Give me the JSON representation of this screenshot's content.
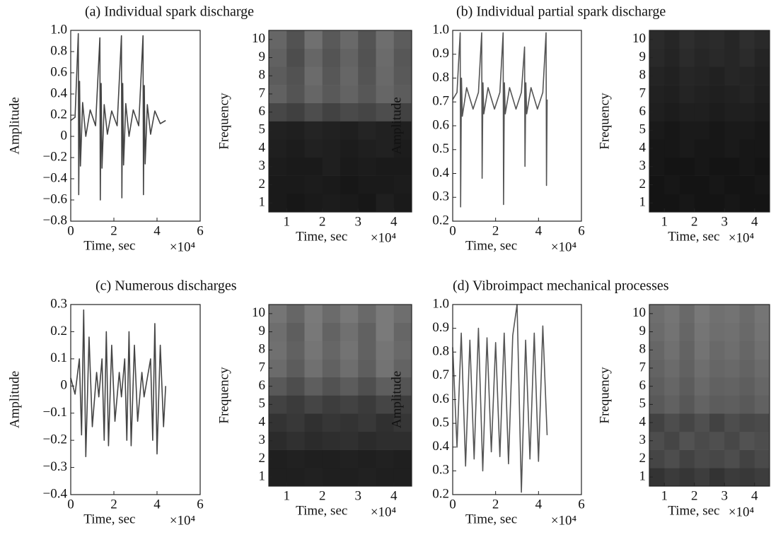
{
  "chart_data": [
    {
      "type": "line",
      "title": "(a) Individual spark discharge",
      "ylabel": "Amplitude",
      "xlabel": "Time, sec",
      "x_multiplier": "×10⁴",
      "color": "#444444",
      "xlim": [
        0,
        6
      ],
      "xticks": [
        0,
        2,
        4,
        6
      ],
      "ylim": [
        -0.8,
        1.0
      ],
      "yticks": [
        {
          "value": -0.8,
          "label": "−0.8"
        },
        {
          "value": -0.6,
          "label": "−0.6"
        },
        {
          "value": -0.4,
          "label": "−0.4"
        },
        {
          "value": -0.2,
          "label": "−0.2"
        },
        0,
        0.2,
        0.4,
        0.6,
        0.8,
        {
          "value": 1.0,
          "label": "1.0"
        }
      ],
      "x": [
        0,
        0.2,
        0.35,
        0.37,
        0.41,
        0.45,
        0.55,
        0.7,
        0.9,
        1.15,
        1.35,
        1.37,
        1.41,
        1.45,
        1.55,
        1.7,
        1.9,
        2.15,
        2.35,
        2.37,
        2.41,
        2.45,
        2.55,
        2.7,
        2.9,
        3.15,
        3.35,
        3.37,
        3.41,
        3.45,
        3.55,
        3.7,
        3.9,
        4.15,
        4.4
      ],
      "values": [
        0.15,
        0.18,
        0.97,
        -0.55,
        0.52,
        -0.28,
        0.32,
        0.0,
        0.25,
        0.1,
        0.93,
        -0.6,
        0.5,
        -0.3,
        0.3,
        0.02,
        0.24,
        0.1,
        0.95,
        -0.58,
        0.5,
        -0.27,
        0.31,
        0.0,
        0.25,
        0.1,
        0.95,
        -0.55,
        0.48,
        -0.26,
        0.3,
        0.02,
        0.24,
        0.12,
        0.15
      ]
    },
    {
      "type": "heatmap",
      "ylabel": "Frequency",
      "xlabel": "Time, sec",
      "x_multiplier": "×10⁴",
      "xlim": [
        0.5,
        4.5
      ],
      "xticks": [
        1,
        2,
        3,
        4
      ],
      "ylim": [
        0.5,
        10.5
      ],
      "yticks": [
        1,
        2,
        3,
        4,
        5,
        6,
        7,
        8,
        9,
        10
      ],
      "columns": [
        0.75,
        1.25,
        1.75,
        2.25,
        2.75,
        3.25,
        3.75,
        4.25
      ],
      "rows": [
        1,
        2,
        3,
        4,
        5,
        6,
        7,
        8,
        9,
        10
      ],
      "values": [
        [
          0.1,
          0.09,
          0.1,
          0.11,
          0.1,
          0.09,
          0.12,
          0.1
        ],
        [
          0.1,
          0.1,
          0.11,
          0.1,
          0.09,
          0.1,
          0.1,
          0.11
        ],
        [
          0.11,
          0.1,
          0.1,
          0.12,
          0.1,
          0.11,
          0.1,
          0.1
        ],
        [
          0.12,
          0.11,
          0.13,
          0.12,
          0.11,
          0.12,
          0.13,
          0.11
        ],
        [
          0.13,
          0.12,
          0.14,
          0.13,
          0.12,
          0.14,
          0.13,
          0.12
        ],
        [
          0.28,
          0.25,
          0.3,
          0.26,
          0.29,
          0.27,
          0.3,
          0.26
        ],
        [
          0.38,
          0.33,
          0.4,
          0.35,
          0.39,
          0.34,
          0.4,
          0.36
        ],
        [
          0.36,
          0.32,
          0.42,
          0.34,
          0.4,
          0.33,
          0.41,
          0.35
        ],
        [
          0.38,
          0.3,
          0.4,
          0.33,
          0.39,
          0.32,
          0.42,
          0.34
        ],
        [
          0.4,
          0.32,
          0.44,
          0.35,
          0.41,
          0.33,
          0.43,
          0.36
        ]
      ]
    },
    {
      "type": "line",
      "title": "(b) Individual partial spark discharge",
      "ylabel": "Amplitude",
      "xlabel": "Time, sec",
      "x_multiplier": "×10⁴",
      "color": "#555555",
      "xlim": [
        0,
        6
      ],
      "xticks": [
        0,
        2,
        4,
        6
      ],
      "ylim": [
        0.2,
        1.0
      ],
      "yticks": [
        0.2,
        0.3,
        0.4,
        0.5,
        0.6,
        0.7,
        0.8,
        0.9,
        {
          "value": 1.0,
          "label": "1.0"
        }
      ],
      "x": [
        0,
        0.2,
        0.35,
        0.37,
        0.41,
        0.45,
        0.65,
        0.95,
        1.2,
        1.35,
        1.37,
        1.41,
        1.45,
        1.65,
        1.95,
        2.2,
        2.35,
        2.37,
        2.41,
        2.45,
        2.65,
        2.95,
        3.2,
        3.35,
        3.37,
        3.41,
        3.45,
        3.65,
        3.95,
        4.2,
        4.35,
        4.37,
        4.4
      ],
      "values": [
        0.71,
        0.74,
        0.99,
        0.26,
        0.8,
        0.64,
        0.76,
        0.67,
        0.74,
        0.99,
        0.38,
        0.78,
        0.65,
        0.76,
        0.67,
        0.74,
        0.99,
        0.27,
        0.78,
        0.65,
        0.76,
        0.67,
        0.74,
        0.93,
        0.43,
        0.78,
        0.65,
        0.76,
        0.67,
        0.74,
        0.99,
        0.35,
        0.71
      ]
    },
    {
      "type": "heatmap",
      "ylabel": "Frequency",
      "xlabel": "Time, sec",
      "x_multiplier": "×10⁴",
      "xlim": [
        0.5,
        4.5
      ],
      "xticks": [
        1,
        2,
        3,
        4
      ],
      "ylim": [
        0.5,
        10.5
      ],
      "yticks": [
        1,
        2,
        3,
        4,
        5,
        6,
        7,
        8,
        9,
        10
      ],
      "columns": [
        0.75,
        1.25,
        1.75,
        2.25,
        2.75,
        3.25,
        3.75,
        4.25
      ],
      "rows": [
        1,
        2,
        3,
        4,
        5,
        6,
        7,
        8,
        9,
        10
      ],
      "values": [
        [
          0.08,
          0.08,
          0.09,
          0.08,
          0.08,
          0.09,
          0.08,
          0.08
        ],
        [
          0.08,
          0.09,
          0.08,
          0.08,
          0.09,
          0.08,
          0.08,
          0.09
        ],
        [
          0.09,
          0.08,
          0.08,
          0.09,
          0.08,
          0.08,
          0.09,
          0.08
        ],
        [
          0.09,
          0.09,
          0.1,
          0.09,
          0.09,
          0.1,
          0.09,
          0.09
        ],
        [
          0.1,
          0.09,
          0.1,
          0.1,
          0.09,
          0.1,
          0.1,
          0.09
        ],
        [
          0.12,
          0.11,
          0.12,
          0.12,
          0.11,
          0.12,
          0.12,
          0.11
        ],
        [
          0.13,
          0.12,
          0.14,
          0.13,
          0.12,
          0.13,
          0.14,
          0.12
        ],
        [
          0.14,
          0.13,
          0.15,
          0.14,
          0.13,
          0.15,
          0.14,
          0.13
        ],
        [
          0.16,
          0.14,
          0.17,
          0.15,
          0.16,
          0.15,
          0.17,
          0.14
        ],
        [
          0.17,
          0.15,
          0.18,
          0.16,
          0.17,
          0.15,
          0.18,
          0.16
        ]
      ]
    },
    {
      "type": "line",
      "title": "(c) Numerous discharges",
      "ylabel": "Amplitude",
      "xlabel": "Time, sec",
      "x_multiplier": "×10⁴",
      "color": "#444444",
      "xlim": [
        0,
        6
      ],
      "xticks": [
        0,
        2,
        4,
        6
      ],
      "ylim": [
        -0.4,
        0.3
      ],
      "yticks": [
        {
          "value": -0.4,
          "label": "−0.4"
        },
        {
          "value": -0.3,
          "label": "−0.3"
        },
        {
          "value": -0.2,
          "label": "−0.2"
        },
        {
          "value": -0.1,
          "label": "−0.1"
        },
        0,
        0.1,
        0.2,
        0.3
      ],
      "x": [
        0,
        0.2,
        0.4,
        0.5,
        0.6,
        0.7,
        0.85,
        1.0,
        1.2,
        1.3,
        1.45,
        1.55,
        1.65,
        1.75,
        1.9,
        2.05,
        2.25,
        2.35,
        2.5,
        2.6,
        2.7,
        2.8,
        2.95,
        3.1,
        3.3,
        3.4,
        3.7,
        3.8,
        3.9,
        4.0,
        4.15,
        4.3,
        4.4
      ],
      "values": [
        0.03,
        -0.03,
        0.1,
        -0.18,
        0.28,
        -0.26,
        0.18,
        -0.15,
        0.05,
        -0.04,
        0.1,
        -0.2,
        0.2,
        -0.22,
        0.15,
        -0.13,
        0.05,
        -0.04,
        0.1,
        -0.2,
        0.2,
        -0.22,
        0.15,
        -0.13,
        0.05,
        -0.04,
        0.1,
        -0.2,
        0.23,
        -0.25,
        0.15,
        -0.15,
        0.0
      ]
    },
    {
      "type": "heatmap",
      "ylabel": "Frequency",
      "xlabel": "Time, sec",
      "x_multiplier": "×10⁴",
      "xlim": [
        0.5,
        4.5
      ],
      "xticks": [
        1,
        2,
        3,
        4
      ],
      "ylim": [
        0.5,
        10.5
      ],
      "yticks": [
        1,
        2,
        3,
        4,
        5,
        6,
        7,
        8,
        9,
        10
      ],
      "columns": [
        0.75,
        1.25,
        1.75,
        2.25,
        2.75,
        3.25,
        3.75,
        4.25
      ],
      "rows": [
        1,
        2,
        3,
        4,
        5,
        6,
        7,
        8,
        9,
        10
      ],
      "values": [
        [
          0.12,
          0.12,
          0.13,
          0.12,
          0.12,
          0.13,
          0.12,
          0.12
        ],
        [
          0.12,
          0.13,
          0.12,
          0.12,
          0.13,
          0.12,
          0.13,
          0.12
        ],
        [
          0.17,
          0.19,
          0.17,
          0.18,
          0.19,
          0.17,
          0.18,
          0.18
        ],
        [
          0.2,
          0.22,
          0.19,
          0.21,
          0.2,
          0.22,
          0.19,
          0.21
        ],
        [
          0.26,
          0.23,
          0.27,
          0.24,
          0.26,
          0.23,
          0.27,
          0.24
        ],
        [
          0.35,
          0.3,
          0.37,
          0.32,
          0.36,
          0.31,
          0.37,
          0.33
        ],
        [
          0.42,
          0.36,
          0.44,
          0.38,
          0.43,
          0.37,
          0.45,
          0.39
        ],
        [
          0.44,
          0.38,
          0.46,
          0.4,
          0.45,
          0.38,
          0.46,
          0.41
        ],
        [
          0.43,
          0.37,
          0.47,
          0.39,
          0.44,
          0.38,
          0.48,
          0.4
        ],
        [
          0.46,
          0.4,
          0.48,
          0.42,
          0.47,
          0.41,
          0.48,
          0.43
        ]
      ]
    },
    {
      "type": "line",
      "title": "(d) Vibroimpact mechanical processes",
      "ylabel": "Amplitude",
      "xlabel": "Time, sec",
      "x_multiplier": "×10⁴",
      "color": "#555555",
      "xlim": [
        0,
        6
      ],
      "xticks": [
        0,
        2,
        4,
        6
      ],
      "ylim": [
        0.2,
        1.0
      ],
      "yticks": [
        0.2,
        0.3,
        0.4,
        0.5,
        0.6,
        0.7,
        0.8,
        0.9,
        {
          "value": 1.0,
          "label": "1.0"
        }
      ],
      "x": [
        0,
        0.2,
        0.4,
        0.6,
        0.8,
        1.0,
        1.2,
        1.4,
        1.6,
        1.8,
        2.0,
        2.2,
        2.4,
        2.6,
        2.8,
        3.0,
        3.2,
        3.4,
        3.6,
        3.8,
        4.0,
        4.2,
        4.4
      ],
      "values": [
        0.82,
        0.4,
        0.88,
        0.32,
        0.85,
        0.35,
        0.9,
        0.3,
        0.86,
        0.38,
        0.84,
        0.36,
        0.88,
        0.33,
        0.87,
        1.0,
        0.21,
        0.85,
        0.35,
        0.88,
        0.34,
        0.91,
        0.45
      ]
    },
    {
      "type": "heatmap",
      "ylabel": "Frequency",
      "xlabel": "Time, sec",
      "x_multiplier": "×10⁴",
      "xlim": [
        0.5,
        4.5
      ],
      "xticks": [
        1,
        2,
        3,
        4
      ],
      "ylim": [
        0.5,
        10.5
      ],
      "yticks": [
        1,
        2,
        3,
        4,
        5,
        6,
        7,
        8,
        9,
        10
      ],
      "columns": [
        0.75,
        1.25,
        1.75,
        2.25,
        2.75,
        3.25,
        3.75,
        4.25
      ],
      "rows": [
        1,
        2,
        3,
        4,
        5,
        6,
        7,
        8,
        9,
        10
      ],
      "values": [
        [
          0.2,
          0.23,
          0.21,
          0.24,
          0.2,
          0.23,
          0.22,
          0.24
        ],
        [
          0.27,
          0.3,
          0.26,
          0.29,
          0.28,
          0.3,
          0.26,
          0.29
        ],
        [
          0.3,
          0.27,
          0.32,
          0.29,
          0.31,
          0.28,
          0.32,
          0.3
        ],
        [
          0.26,
          0.3,
          0.27,
          0.31,
          0.26,
          0.3,
          0.28,
          0.29
        ],
        [
          0.35,
          0.38,
          0.34,
          0.39,
          0.36,
          0.37,
          0.35,
          0.38
        ],
        [
          0.37,
          0.4,
          0.36,
          0.41,
          0.38,
          0.39,
          0.37,
          0.4
        ],
        [
          0.39,
          0.42,
          0.38,
          0.43,
          0.4,
          0.41,
          0.39,
          0.42
        ],
        [
          0.4,
          0.44,
          0.39,
          0.45,
          0.41,
          0.43,
          0.4,
          0.44
        ],
        [
          0.42,
          0.45,
          0.4,
          0.46,
          0.43,
          0.44,
          0.41,
          0.45
        ],
        [
          0.43,
          0.46,
          0.41,
          0.47,
          0.44,
          0.45,
          0.42,
          0.46
        ]
      ]
    }
  ]
}
